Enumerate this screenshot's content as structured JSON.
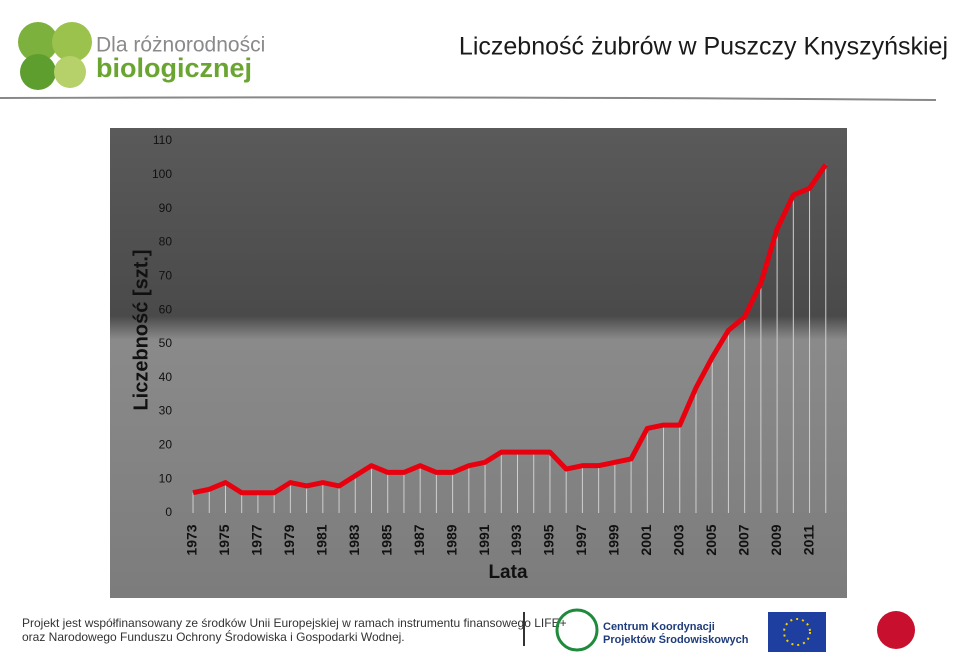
{
  "header": {
    "logo_line1": "Dla różnorodności",
    "logo_line2": "biologicznej"
  },
  "chart_data": {
    "type": "line",
    "title": "Liczebność żubrów w Puszczy Knyszyńskiej",
    "x_label": "Lata",
    "y_label": "Liczebność [szt.]",
    "x": [
      1973,
      1974,
      1975,
      1976,
      1977,
      1978,
      1979,
      1980,
      1981,
      1982,
      1983,
      1984,
      1985,
      1986,
      1987,
      1988,
      1989,
      1990,
      1991,
      1992,
      1993,
      1994,
      1995,
      1996,
      1997,
      1998,
      1999,
      2000,
      2001,
      2002,
      2003,
      2004,
      2005,
      2006,
      2007,
      2008,
      2009,
      2010,
      2011,
      2012
    ],
    "series": [
      {
        "color": "#e8000f",
        "values": [
          6,
          7,
          9,
          6,
          6,
          6,
          9,
          8,
          9,
          8,
          11,
          14,
          12,
          12,
          14,
          12,
          12,
          14,
          15,
          18,
          18,
          18,
          18,
          13,
          14,
          14,
          15,
          16,
          25,
          26,
          26,
          37,
          46,
          54,
          58,
          68,
          84,
          94,
          96,
          103
        ]
      }
    ],
    "xlim": [
      1972,
      2013
    ],
    "xticks": [
      1973,
      1975,
      1977,
      1979,
      1981,
      1983,
      1985,
      1987,
      1989,
      1991,
      1993,
      1995,
      1997,
      1999,
      2001,
      2003,
      2005,
      2007,
      2009,
      2011
    ],
    "ylim": [
      0,
      110
    ],
    "yticks": [
      0,
      10,
      20,
      30,
      40,
      50,
      60,
      70,
      80,
      90,
      100,
      110
    ],
    "drop_lines": true
  },
  "footer": {
    "line1": "Projekt jest współfinansowany ze środków Unii Europejskiej w ramach instrumentu finansowego LIFE+",
    "line2": "oraz Narodowego Funduszu Ochrony Środowiska i Gospodarki Wodnej.",
    "ckps1": "Centrum Koordynacji",
    "ckps2": "Projektów Środowiskowych"
  }
}
